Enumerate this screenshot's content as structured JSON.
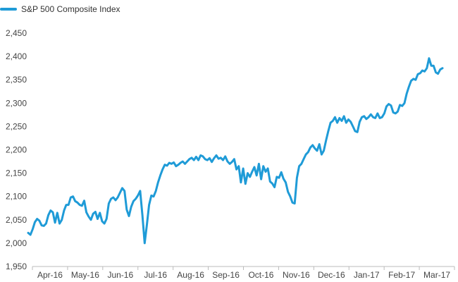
{
  "colors": {
    "series": "#1F9BD7",
    "axis": "#BBBBBB",
    "text": "#444444"
  },
  "chart_data": {
    "type": "line",
    "title": "",
    "xlabel": "",
    "ylabel": "",
    "legend_position": "top-left",
    "grid": false,
    "ylim": [
      1950,
      2450
    ],
    "yticks": [
      "1,950",
      "2,000",
      "2,050",
      "2,100",
      "2,150",
      "2,200",
      "2,250",
      "2,300",
      "2,350",
      "2,400",
      "2,450"
    ],
    "xticks": [
      "Apr-16",
      "May-16",
      "Jun-16",
      "Jul-16",
      "Aug-16",
      "Sep-16",
      "Oct-16",
      "Nov-16",
      "Dec-16",
      "Jan-17",
      "Feb-17",
      "Mar-17"
    ],
    "series": [
      {
        "name": "S&P 500 Composite Index",
        "values": [
          2022,
          2018,
          2030,
          2045,
          2052,
          2048,
          2038,
          2037,
          2042,
          2060,
          2070,
          2066,
          2044,
          2065,
          2042,
          2050,
          2070,
          2082,
          2082,
          2098,
          2100,
          2090,
          2087,
          2082,
          2080,
          2091,
          2066,
          2057,
          2050,
          2063,
          2067,
          2052,
          2065,
          2047,
          2042,
          2052,
          2085,
          2095,
          2098,
          2092,
          2098,
          2108,
          2118,
          2112,
          2072,
          2058,
          2078,
          2090,
          2095,
          2102,
          2112,
          2060,
          2000,
          2040,
          2082,
          2102,
          2100,
          2112,
          2130,
          2145,
          2158,
          2168,
          2166,
          2172,
          2170,
          2173,
          2165,
          2168,
          2172,
          2175,
          2170,
          2175,
          2180,
          2183,
          2178,
          2185,
          2178,
          2188,
          2186,
          2180,
          2178,
          2182,
          2174,
          2182,
          2188,
          2181,
          2183,
          2178,
          2186,
          2175,
          2170,
          2174,
          2180,
          2158,
          2165,
          2130,
          2160,
          2127,
          2150,
          2142,
          2153,
          2163,
          2145,
          2170,
          2137,
          2165,
          2153,
          2160,
          2132,
          2128,
          2120,
          2142,
          2140,
          2152,
          2138,
          2130,
          2110,
          2100,
          2087,
          2085,
          2140,
          2165,
          2170,
          2180,
          2190,
          2195,
          2205,
          2210,
          2203,
          2198,
          2212,
          2190,
          2198,
          2220,
          2240,
          2258,
          2262,
          2270,
          2258,
          2268,
          2262,
          2272,
          2258,
          2265,
          2260,
          2250,
          2240,
          2238,
          2260,
          2270,
          2272,
          2266,
          2270,
          2276,
          2270,
          2268,
          2278,
          2268,
          2270,
          2278,
          2293,
          2298,
          2295,
          2280,
          2278,
          2282,
          2296,
          2294,
          2300,
          2320,
          2335,
          2348,
          2352,
          2350,
          2362,
          2364,
          2370,
          2368,
          2375,
          2396,
          2380,
          2380,
          2366,
          2363,
          2372,
          2375
        ]
      }
    ]
  }
}
